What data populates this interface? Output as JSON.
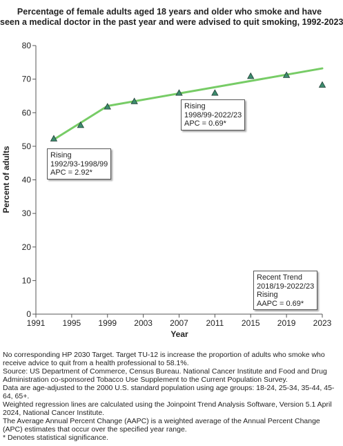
{
  "chart_data": {
    "type": "line",
    "title_lines": [
      "Percentage of  female adults aged 18 years and older who smoke and have",
      "seen a medical doctor in the past year and were advised to quit smoking, 1992-2023"
    ],
    "xlabel": "Year",
    "ylabel": "Percent of adults",
    "xlim": [
      1991,
      2023
    ],
    "ylim": [
      0,
      80
    ],
    "x_ticks": [
      1991,
      1995,
      1999,
      2003,
      2007,
      2011,
      2015,
      2019,
      2023
    ],
    "y_ticks": [
      0,
      10,
      20,
      30,
      40,
      50,
      60,
      70,
      80
    ],
    "grid": false,
    "observed": {
      "marker": "triangle",
      "color": "#3d8c6e",
      "x": [
        1993,
        1996,
        1999,
        2002,
        2007,
        2011,
        2015,
        2019,
        2023
      ],
      "y": [
        52.3,
        56.3,
        61.8,
        63.4,
        65.9,
        65.9,
        70.9,
        71.2,
        68.3
      ]
    },
    "trend": {
      "color": "#77cc66",
      "x": [
        1993,
        1999,
        2023
      ],
      "y": [
        52.0,
        62.0,
        73.2
      ]
    },
    "annotations": [
      {
        "lines": [
          "Rising",
          "1992/93-1998/99",
          "APC =  2.92*"
        ]
      },
      {
        "lines": [
          "Rising",
          "1998/99-2022/23",
          "APC =  0.69*"
        ]
      },
      {
        "lines": [
          "Recent Trend",
          "2018/19-2022/23",
          "Rising",
          "AAPC =  0.69*"
        ]
      }
    ]
  },
  "footnotes": [
    "No corresponding HP 2030 Target. Target TU-12 is increase the proportion of adults who smoke who receive advice to quit from a health professional to 58.1%.",
    "Source: US Department of Commerce, Census Bureau. National Cancer Institute and Food and Drug Administration co-sponsored Tobacco Use Supplement to the Current Population Survey.",
    "Data are age-adjusted to the 2000 U.S. standard population using age groups: 18-24, 25-34, 35-44, 45-64, 65+.",
    "Weighted regression lines are calculated using the Joinpoint Trend Analysis Software, Version 5.1 April 2024, National Cancer Institute.",
    "The Average Annual Percent Change (AAPC) is a weighted average of the Annual Percent Change (APC) estimates that occur over the specified year range.",
    "* Denotes statistical significance."
  ]
}
